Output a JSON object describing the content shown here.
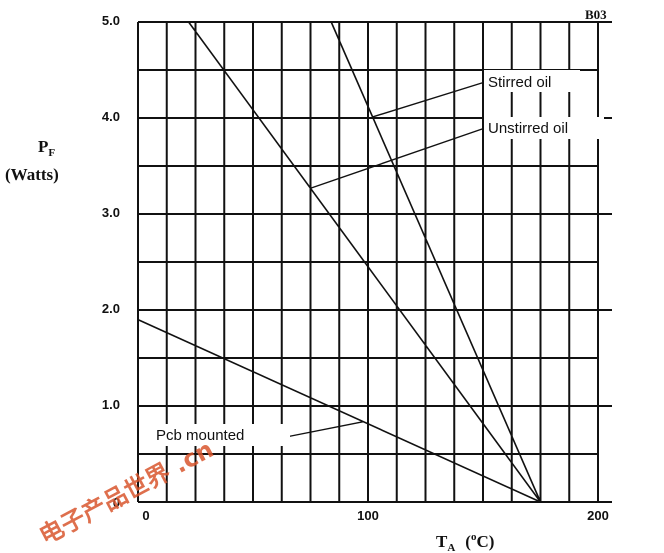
{
  "chart_data": {
    "type": "line",
    "code": "B03",
    "ylabel": {
      "symbol": "P",
      "subscript": "F",
      "unit": "(Watts)"
    },
    "xlabel": {
      "symbol": "T",
      "subscript": "A",
      "unit_pre": "(",
      "unit_sup": "o",
      "unit_post": "C)"
    },
    "xlim": [
      0,
      200
    ],
    "ylim": [
      0,
      5.0
    ],
    "x_tick_labels": [
      {
        "value": 0,
        "label": "0"
      },
      {
        "value": 100,
        "label": "100"
      },
      {
        "value": 200,
        "label": "200"
      }
    ],
    "y_tick_labels": [
      {
        "value": 0,
        "label": "0"
      },
      {
        "value": 1,
        "label": "1.0"
      },
      {
        "value": 2,
        "label": "2.0"
      },
      {
        "value": 3,
        "label": "3.0"
      },
      {
        "value": 4,
        "label": "4.0"
      },
      {
        "value": 5,
        "label": "5.0"
      }
    ],
    "grid": true,
    "x_grid_step": 12.5,
    "y_grid_step": 0.5,
    "series": [
      {
        "name": "Stirred oil",
        "points": [
          [
            84,
            5.0
          ],
          [
            175,
            0
          ]
        ]
      },
      {
        "name": "Unstirred oil",
        "points": [
          [
            22,
            5.0
          ],
          [
            175,
            0
          ]
        ]
      },
      {
        "name": "Pcb mounted",
        "points": [
          [
            0,
            1.9
          ],
          [
            175,
            0
          ]
        ]
      }
    ]
  },
  "watermark": "电子产品世界 .cn"
}
